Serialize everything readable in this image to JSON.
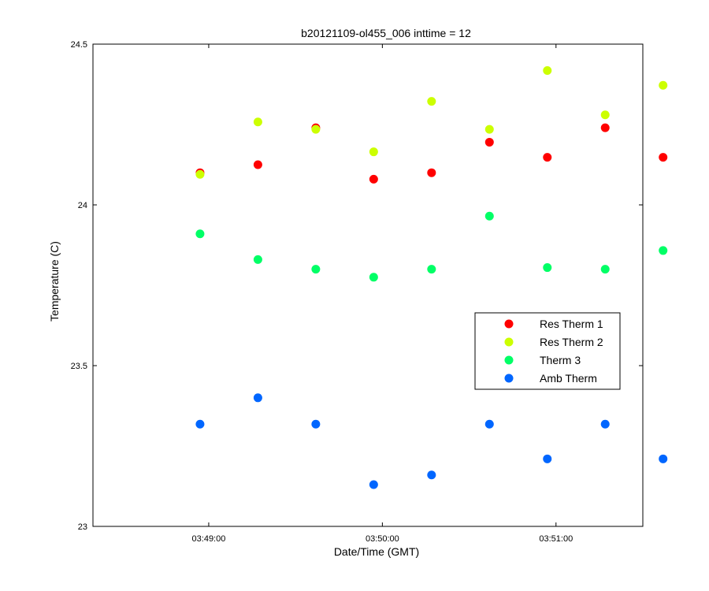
{
  "chart_data": {
    "type": "scatter",
    "title": "b20121109-ol455_006 inttime = 12",
    "xlabel": "Date/Time (GMT)",
    "ylabel": "Temperature (C)",
    "xlim": [
      "03:48:20",
      "03:51:30"
    ],
    "ylim": [
      23,
      24.5
    ],
    "x_tick_labels": [
      "03:49:00",
      "03:50:00",
      "03:51:00"
    ],
    "y_tick_labels": [
      "23",
      "23.5",
      "24",
      "24.5"
    ],
    "legend_position": "right-middle",
    "grid": false,
    "x": [
      "03:48:57",
      "03:49:17",
      "03:49:37",
      "03:49:57",
      "03:50:17",
      "03:50:37",
      "03:50:57",
      "03:51:17",
      "03:51:37"
    ],
    "series": [
      {
        "name": "Res Therm 1",
        "color": "#ff0000",
        "values": [
          24.1,
          24.125,
          24.24,
          24.08,
          24.1,
          24.195,
          24.148,
          24.24,
          24.148
        ]
      },
      {
        "name": "Res Therm 2",
        "color": "#ccff00",
        "values": [
          24.095,
          24.258,
          24.235,
          24.165,
          24.322,
          24.235,
          24.418,
          24.28,
          24.372
        ]
      },
      {
        "name": "Therm 3",
        "color": "#00ff66",
        "values": [
          23.91,
          23.83,
          23.8,
          23.775,
          23.8,
          23.965,
          23.805,
          23.8,
          23.858
        ]
      },
      {
        "name": "Amb Therm",
        "color": "#0066ff",
        "values": [
          23.318,
          23.4,
          23.318,
          23.13,
          23.16,
          23.318,
          23.21,
          23.318,
          23.21
        ]
      }
    ]
  }
}
